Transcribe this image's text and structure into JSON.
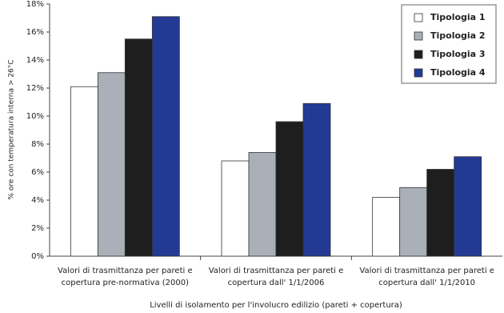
{
  "chart_data": {
    "type": "bar",
    "y_label": "% ore con temperatura interna > 26°C",
    "x_label": "Livelli di isolamento per l'involucro edilizio (pareti + copertura)",
    "categories": [
      [
        "Valori di trasmittanza per pareti e",
        "copertura pre-normativa (2000)"
      ],
      [
        "Valori di trasmittanza per pareti e",
        "copertura dall' 1/1/2006"
      ],
      [
        "Valori di trasmittanza per pareti e",
        "copertura dall' 1/1/2010"
      ]
    ],
    "series": [
      {
        "name": "Tipologia 1",
        "color": "#ffffff",
        "values": [
          12.1,
          6.8,
          4.2
        ]
      },
      {
        "name": "Tipologia 2",
        "color": "#a9b0b7",
        "values": [
          13.1,
          7.4,
          4.9
        ]
      },
      {
        "name": "Tipologia 3",
        "color": "#1e1e1e",
        "values": [
          15.5,
          9.6,
          6.2
        ]
      },
      {
        "name": "Tipologia 4",
        "color": "#233a94",
        "values": [
          17.1,
          10.9,
          7.1
        ]
      }
    ],
    "ylim": [
      0,
      18
    ],
    "yticks": [
      {
        "value": 0,
        "label": "0%"
      },
      {
        "value": 2,
        "label": "2%"
      },
      {
        "value": 4,
        "label": "4%"
      },
      {
        "value": 6,
        "label": "6%"
      },
      {
        "value": 8,
        "label": "8%"
      },
      {
        "value": 10,
        "label": "10%"
      },
      {
        "value": 12,
        "label": "12%"
      },
      {
        "value": 14,
        "label": "14%"
      },
      {
        "value": 16,
        "label": "16%"
      },
      {
        "value": 18,
        "label": "18%"
      }
    ],
    "legend": "top-right"
  }
}
